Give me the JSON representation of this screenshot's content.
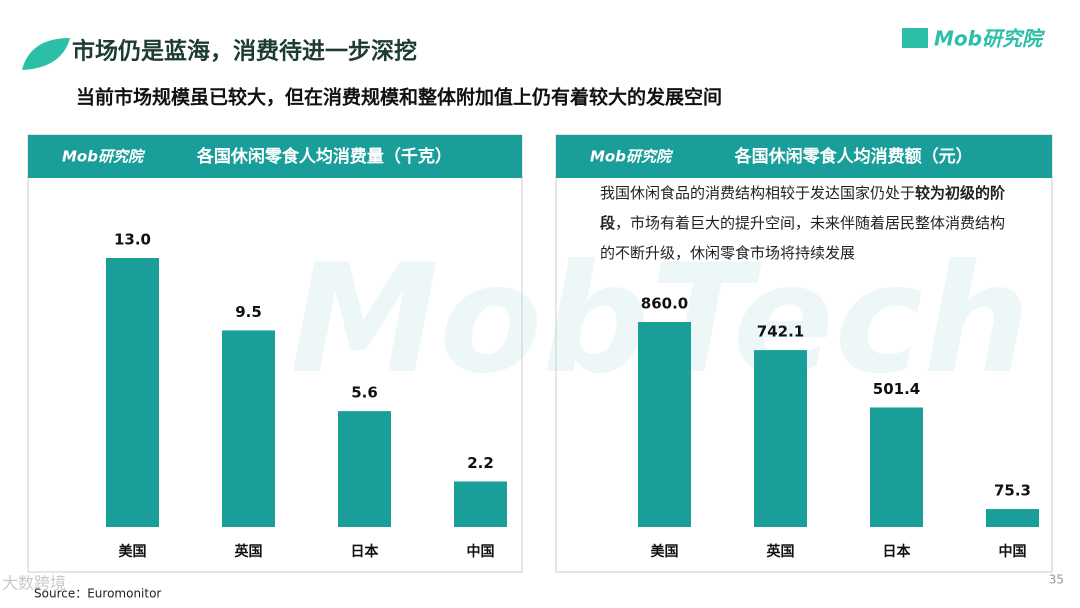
{
  "header": {
    "title": "市场仍是蓝海，消费待进一步深挖",
    "subtitle": "当前市场规模虽已较大，但在消费规模和整体附加值上仍有着较大的发展空间"
  },
  "logo": "Mob研究院",
  "watermark": "MobTech",
  "footer": {
    "source": "Source：Euromonitor",
    "page": "35",
    "stamp": "大数跨境"
  },
  "chart_data": [
    {
      "type": "bar",
      "title": "各国休闲零食人均消费量（千克）",
      "color": "#1a9e99",
      "categories": [
        "美国",
        "英国",
        "日本",
        "中国"
      ],
      "values": [
        13.0,
        9.5,
        5.6,
        2.2
      ],
      "value_labels": [
        "13.0",
        "9.5",
        "5.6",
        "2.2"
      ]
    },
    {
      "type": "bar",
      "title": "各国休闲零食人均消费额（元）",
      "color": "#1a9e99",
      "annotation": [
        "我国休闲食品的消费结构相较于发达国家仍处于",
        "较为初级的阶段",
        "，市场有着巨大的提升空间，未来伴随着居民整体消费结构的不断升级，休闲零食市场将持续发展"
      ],
      "categories": [
        "美国",
        "英国",
        "日本",
        "中国"
      ],
      "values": [
        860.0,
        742.1,
        501.4,
        75.3
      ],
      "value_labels": [
        "860.0",
        "742.1",
        "501.4",
        "75.3"
      ]
    }
  ]
}
